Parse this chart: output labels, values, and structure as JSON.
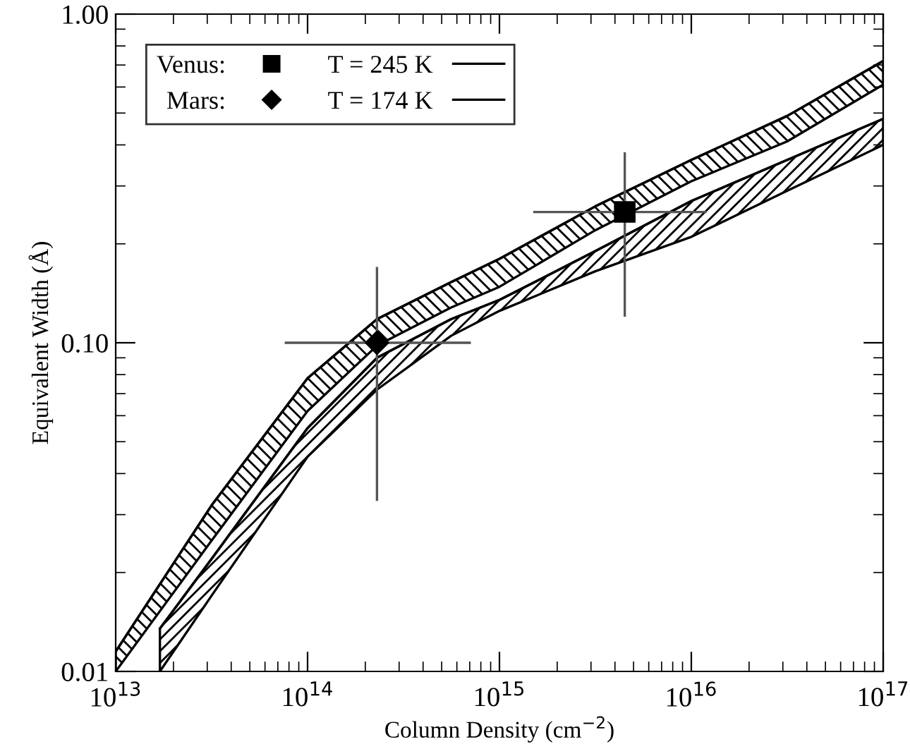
{
  "chart_data": {
    "type": "line",
    "xlabel": "Column Density (cm$^{−2}$)",
    "ylabel": "Equivalent Width (Å)",
    "log": "xy",
    "xlim": [
      10000000000000.0,
      1e+17
    ],
    "ylim": [
      0.01,
      1.0
    ],
    "xticks": [
      {
        "value": 10000000000000.0,
        "label": "10$^{13}$"
      },
      {
        "value": 100000000000000.0,
        "label": "10$^{14}$"
      },
      {
        "value": 1000000000000000.0,
        "label": "10$^{15}$"
      },
      {
        "value": 1e+16,
        "label": "10$^{16}$"
      },
      {
        "value": 1e+17,
        "label": "10$^{17}$"
      }
    ],
    "yticks": [
      0.01,
      {
        "value": 0.1,
        "label": "0.10"
      },
      {
        "value": 1.0,
        "label": "1.00"
      }
    ],
    "grid": false,
    "legend": "top left",
    "series": [
      {
        "name": "T = 245 K",
        "color": "#000000",
        "x": [
          10000000000000.0,
          31600000000000.0,
          100000000000000.0,
          230000000000000.0,
          560000000000000.0,
          1000000000000000.0,
          3160000000000000.0,
          1e+16,
          3.16e+16,
          1e+17
        ],
        "values": [
          0.0115,
          0.032,
          0.078,
          0.118,
          0.153,
          0.18,
          0.26,
          0.36,
          0.49,
          0.72
        ],
        "lower": [
          0.01,
          0.025,
          0.062,
          0.098,
          0.128,
          0.148,
          0.22,
          0.31,
          0.41,
          0.61
        ],
        "upper": [
          0.0115,
          0.032,
          0.078,
          0.118,
          0.153,
          0.18,
          0.26,
          0.36,
          0.49,
          0.72
        ]
      },
      {
        "name": "T = 174 K",
        "color": "#000000",
        "x": [
          17000000000000.0,
          31600000000000.0,
          100000000000000.0,
          230000000000000.0,
          560000000000000.0,
          1000000000000000.0,
          3160000000000000.0,
          1e+16,
          3.16e+16,
          1e+17
        ],
        "values": [
          0.0135,
          0.022,
          0.055,
          0.09,
          0.118,
          0.135,
          0.19,
          0.27,
          0.36,
          0.48
        ],
        "lower": [
          0.01,
          0.017,
          0.045,
          0.072,
          0.105,
          0.125,
          0.165,
          0.21,
          0.29,
          0.4
        ],
        "upper": [
          0.0135,
          0.022,
          0.055,
          0.09,
          0.118,
          0.135,
          0.19,
          0.27,
          0.36,
          0.48
        ]
      },
      {
        "name": "Venus:",
        "type": "scatter",
        "marker": "square",
        "color": "#000000",
        "x": [
          4500000000000000.0
        ],
        "values": [
          0.25
        ],
        "errors": [
          [
            0.12,
            0.38
          ]
        ],
        "xerrors": [
          [
            1500000000000000.0,
            1.2e+16
          ]
        ]
      },
      {
        "name": "Mars:",
        "type": "scatter",
        "marker": "diamond",
        "color": "#000000",
        "x": [
          230000000000000.0
        ],
        "values": [
          0.1
        ],
        "errors": [
          [
            0.033,
            0.17
          ]
        ],
        "xerrors": [
          [
            76000000000000.0,
            710000000000000.0
          ]
        ]
      }
    ]
  }
}
